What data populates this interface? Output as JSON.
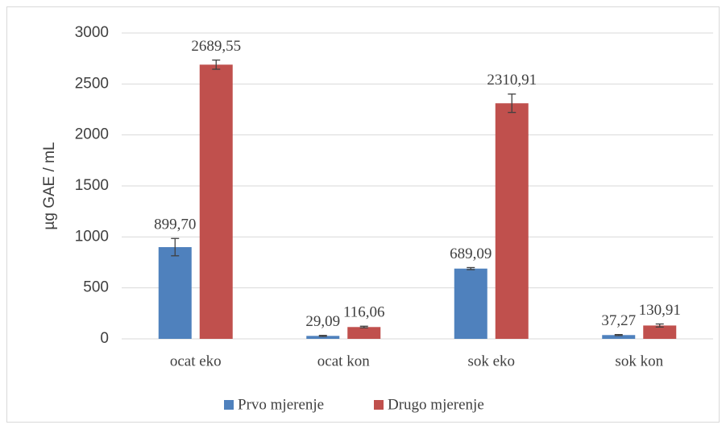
{
  "chart_data": {
    "type": "bar",
    "y_label": "µg GAE / mL",
    "categories": [
      "ocat eko",
      "ocat kon",
      "sok eko",
      "sok kon"
    ],
    "series": [
      {
        "name": "Prvo mjerenje",
        "color": "#4f81bd",
        "values": [
          899.7,
          29.09,
          689.09,
          37.27
        ],
        "value_labels": [
          "899,70",
          "29,09",
          "689,09",
          "37,27"
        ],
        "errors": [
          85,
          5,
          10,
          5
        ]
      },
      {
        "name": "Drugo mjerenje",
        "color": "#c0504d",
        "values": [
          2689.55,
          116.06,
          2310.91,
          130.91
        ],
        "value_labels": [
          "2689,55",
          "116,06",
          "2310,91",
          "130,91"
        ],
        "errors": [
          45,
          8,
          90,
          15
        ]
      }
    ],
    "ylim": [
      0,
      3000
    ],
    "yticks": [
      0,
      500,
      1000,
      1500,
      2000,
      2500,
      3000
    ],
    "grid": true,
    "legend": "bottom"
  }
}
